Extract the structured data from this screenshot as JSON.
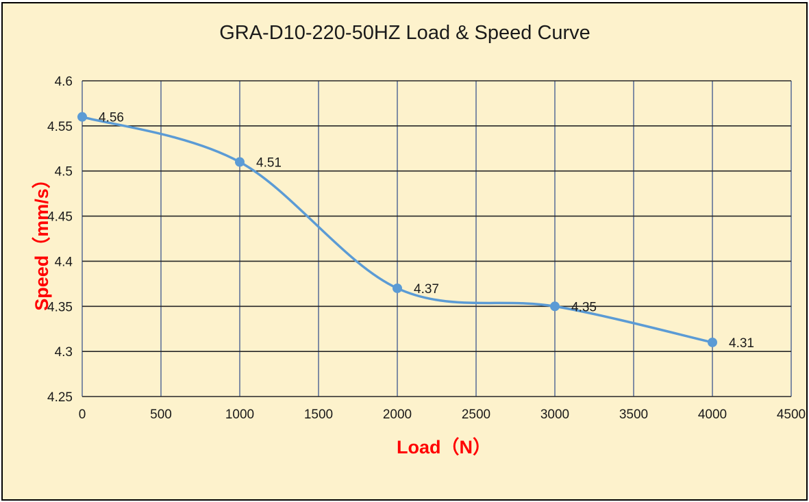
{
  "chart_data": {
    "type": "line",
    "title": "GRA-D10-220-50HZ Load & Speed Curve",
    "xlabel": "Load（N）",
    "ylabel": "Speed（mm/s）",
    "xlim": [
      0,
      4500
    ],
    "ylim": [
      4.25,
      4.6
    ],
    "x_ticks": [
      "0",
      "500",
      "1000",
      "1500",
      "2000",
      "2500",
      "3000",
      "3500",
      "4000",
      "4500"
    ],
    "y_ticks": [
      "4.25",
      "4.3",
      "4.35",
      "4.4",
      "4.45",
      "4.5",
      "4.55",
      "4.6"
    ],
    "x_tick_values": [
      0,
      500,
      1000,
      1500,
      2000,
      2500,
      3000,
      3500,
      4000,
      4500
    ],
    "y_tick_values": [
      4.25,
      4.3,
      4.35,
      4.4,
      4.45,
      4.5,
      4.55,
      4.6
    ],
    "grid": true,
    "smooth": true,
    "series": [
      {
        "x": [
          0,
          1000,
          2000,
          3000,
          4000
        ],
        "y": [
          4.56,
          4.51,
          4.37,
          4.35,
          4.31
        ],
        "labels": [
          "4.56",
          "4.51",
          "4.37",
          "4.35",
          "4.31"
        ]
      }
    ],
    "colors": {
      "line": "#5b9bd5",
      "background": "#fdf2cc",
      "grid_horizontal": "#262626",
      "grid_vertical": "#7f8ca3",
      "axis_title": "#ff0000"
    }
  }
}
